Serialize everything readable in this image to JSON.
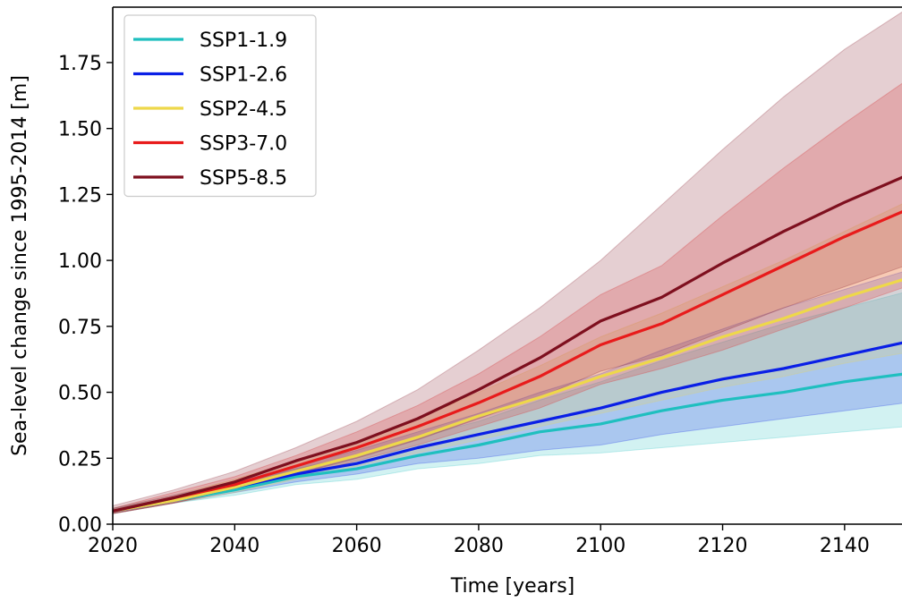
{
  "chart_data": {
    "type": "line",
    "title": "",
    "xlabel": "Time [years]",
    "ylabel": "Sea-level change since 1995-2014 [m]",
    "xlim": [
      2020,
      2150
    ],
    "ylim": [
      0,
      1.96
    ],
    "xticks": [
      2020,
      2040,
      2060,
      2080,
      2100,
      2120,
      2140
    ],
    "xtick_labels": [
      "2020",
      "2040",
      "2060",
      "2080",
      "2100",
      "2120",
      "2140"
    ],
    "yticks": [
      0,
      0.25,
      0.5,
      0.75,
      1.0,
      1.25,
      1.5,
      1.75
    ],
    "ytick_labels": [
      "0.00",
      "0.25",
      "0.50",
      "0.75",
      "1.00",
      "1.25",
      "1.50",
      "1.75"
    ],
    "grid": false,
    "legend_position": "top-left",
    "x": [
      2020,
      2030,
      2040,
      2050,
      2060,
      2070,
      2080,
      2090,
      2100,
      2110,
      2120,
      2130,
      2140,
      2150
    ],
    "series": [
      {
        "name": "SSP1-1.9",
        "color": "#1fbfbf",
        "values": [
          0.05,
          0.09,
          0.13,
          0.18,
          0.21,
          0.26,
          0.3,
          0.35,
          0.38,
          0.43,
          0.47,
          0.5,
          0.54,
          0.57
        ],
        "lower": [
          0.04,
          0.08,
          0.11,
          0.15,
          0.17,
          0.21,
          0.23,
          0.26,
          0.27,
          0.29,
          0.31,
          0.33,
          0.35,
          0.37
        ],
        "upper": [
          0.06,
          0.1,
          0.15,
          0.21,
          0.26,
          0.33,
          0.39,
          0.47,
          0.54,
          0.62,
          0.69,
          0.76,
          0.82,
          0.88
        ]
      },
      {
        "name": "SSP1-2.6",
        "color": "#0a1fe6",
        "values": [
          0.05,
          0.09,
          0.14,
          0.19,
          0.23,
          0.29,
          0.34,
          0.39,
          0.44,
          0.5,
          0.55,
          0.59,
          0.64,
          0.69
        ],
        "lower": [
          0.04,
          0.08,
          0.12,
          0.16,
          0.19,
          0.23,
          0.25,
          0.28,
          0.3,
          0.34,
          0.37,
          0.4,
          0.43,
          0.46
        ],
        "upper": [
          0.06,
          0.11,
          0.16,
          0.22,
          0.28,
          0.35,
          0.42,
          0.5,
          0.57,
          0.66,
          0.74,
          0.82,
          0.89,
          0.96
        ]
      },
      {
        "name": "SSP2-4.5",
        "color": "#eed84a",
        "values": [
          0.05,
          0.09,
          0.14,
          0.2,
          0.26,
          0.33,
          0.41,
          0.48,
          0.56,
          0.63,
          0.71,
          0.78,
          0.86,
          0.93
        ],
        "lower": [
          0.04,
          0.08,
          0.12,
          0.17,
          0.22,
          0.27,
          0.32,
          0.37,
          0.42,
          0.47,
          0.52,
          0.56,
          0.61,
          0.65
        ],
        "upper": [
          0.06,
          0.11,
          0.17,
          0.24,
          0.31,
          0.4,
          0.5,
          0.6,
          0.71,
          0.8,
          0.9,
          1.0,
          1.11,
          1.22
        ]
      },
      {
        "name": "SSP3-7.0",
        "color": "#e81b1b",
        "values": [
          0.05,
          0.1,
          0.15,
          0.22,
          0.29,
          0.37,
          0.46,
          0.56,
          0.68,
          0.76,
          0.87,
          0.98,
          1.09,
          1.19
        ],
        "lower": [
          0.04,
          0.08,
          0.13,
          0.18,
          0.24,
          0.3,
          0.37,
          0.44,
          0.53,
          0.59,
          0.66,
          0.74,
          0.82,
          0.9
        ],
        "upper": [
          0.06,
          0.12,
          0.18,
          0.26,
          0.35,
          0.45,
          0.57,
          0.71,
          0.87,
          0.98,
          1.17,
          1.35,
          1.52,
          1.68
        ]
      },
      {
        "name": "SSP5-8.5",
        "color": "#7e0f1e",
        "values": [
          0.05,
          0.1,
          0.16,
          0.24,
          0.31,
          0.4,
          0.51,
          0.63,
          0.77,
          0.86,
          0.99,
          1.11,
          1.22,
          1.32
        ],
        "lower": [
          0.04,
          0.08,
          0.13,
          0.19,
          0.25,
          0.32,
          0.4,
          0.48,
          0.58,
          0.64,
          0.73,
          0.82,
          0.9,
          0.98
        ],
        "upper": [
          0.07,
          0.13,
          0.2,
          0.29,
          0.39,
          0.51,
          0.66,
          0.82,
          1.0,
          1.21,
          1.42,
          1.62,
          1.8,
          1.95
        ]
      }
    ]
  }
}
